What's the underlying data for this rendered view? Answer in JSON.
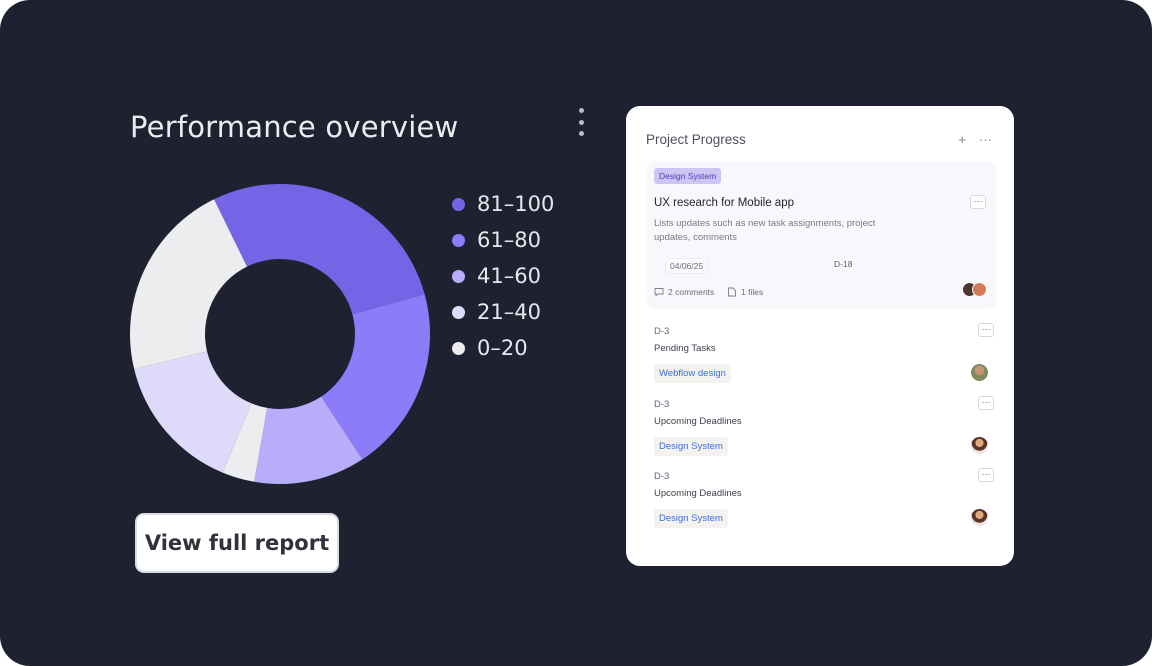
{
  "overview": {
    "title": "Performance overview",
    "more_icon": "kebab-vertical-icon",
    "report_button": "View full report"
  },
  "donut": {
    "segments": [
      {
        "label": "81–100",
        "share": 0.28,
        "color": "#7565e6"
      },
      {
        "label": "61–80",
        "share": 0.2,
        "color": "#8d7cf9"
      },
      {
        "label": "41–60",
        "share": 0.12,
        "color": "#b8acfb"
      },
      {
        "label": "21–40",
        "share": 0.15,
        "color": "#dfdaf9"
      },
      {
        "label": "0–20",
        "share": 0.25,
        "color": "#ededef"
      }
    ],
    "draw_order": [
      0,
      1,
      2,
      4,
      3,
      4
    ],
    "draw_shares": [
      0.28,
      0.2,
      0.12,
      0.035,
      0.15,
      0.215
    ]
  },
  "card": {
    "title": "Project Progress",
    "add_icon": "+",
    "more_icon": "···",
    "featured": {
      "tag": "Design System",
      "title": "UX research  for Mobile app",
      "description": "Lists updates such as new task assignments, project updates, comments",
      "date": "04/06/25",
      "id": "D-18",
      "comments": "2 comments",
      "files": "1 files",
      "more": "···"
    },
    "tasks": [
      {
        "id": "D-3",
        "name": "Pending Tasks",
        "tag": "Webflow design",
        "more": "···"
      },
      {
        "id": "D-3",
        "name": "Upcoming Deadlines",
        "tag": "Design System",
        "more": "···"
      },
      {
        "id": "D-3",
        "name": "Upcoming Deadlines",
        "tag": "Design System",
        "more": "···"
      }
    ]
  }
}
